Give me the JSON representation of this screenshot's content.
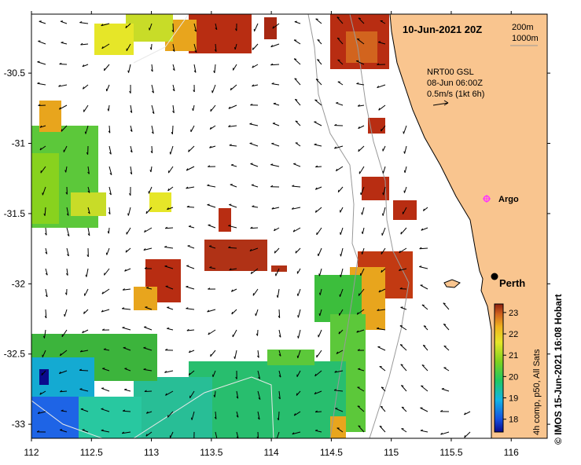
{
  "title": "10-Jun-2021 20Z",
  "contour_legend": [
    "200m",
    "1000m"
  ],
  "current_info": {
    "line1": "NRT00 GSL",
    "line2": "08-Jun 06:00Z",
    "line3": "0.5m/s (1kt 6h)"
  },
  "places": [
    {
      "name": "Argo",
      "lon": 115.88,
      "lat": -31.37,
      "marker": "argo-float",
      "color": "#ff33ff"
    },
    {
      "name": "Perth",
      "lon": 115.86,
      "lat": -31.95,
      "marker": "city-dot",
      "color": "#000000"
    }
  ],
  "axes": {
    "lon_range": [
      112,
      116.3
    ],
    "lat_range": [
      -33.1,
      -30.08
    ],
    "lon_ticks": [
      "112",
      "112.5",
      "113",
      "113.5",
      "114",
      "114.5",
      "115",
      "115.5",
      "116"
    ],
    "lat_ticks": [
      "-30.5",
      "-31",
      "-31.5",
      "-32",
      "-32.5",
      "-33"
    ]
  },
  "colorbar": {
    "label": "4h comp, p50, All Sats",
    "min": 17.4,
    "max": 23.4,
    "ticks": [
      "18",
      "19",
      "20",
      "21",
      "22",
      "23"
    ]
  },
  "credit": "© IMOS 15-Jun-2021 16:08 Hobart",
  "colors": {
    "land": "#f9c58f",
    "coast": "#000000",
    "isobath": "#999999"
  }
}
